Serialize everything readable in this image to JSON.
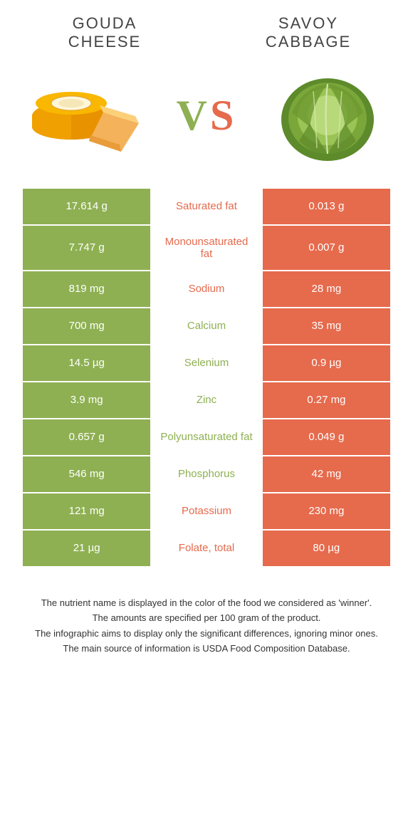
{
  "colors": {
    "green": "#8eb052",
    "orange": "#e66a4c",
    "white": "#ffffff"
  },
  "header": {
    "left_title_l1": "GOUDA",
    "left_title_l2": "CHEESE",
    "right_title_l1": "SAVOY",
    "right_title_l2": "CABBAGE"
  },
  "vs": {
    "text": "VS",
    "left_color": "#8eb052",
    "right_color": "#e66a4c"
  },
  "table": {
    "left_bg": "#8eb052",
    "right_bg": "#e66a4c",
    "center_bg": "#ffffff",
    "rows": [
      {
        "left": "17.614 g",
        "label": "Saturated fat",
        "winner": "orange",
        "right": "0.013 g"
      },
      {
        "left": "7.747 g",
        "label": "Monounsaturated fat",
        "winner": "orange",
        "right": "0.007 g"
      },
      {
        "left": "819 mg",
        "label": "Sodium",
        "winner": "orange",
        "right": "28 mg"
      },
      {
        "left": "700 mg",
        "label": "Calcium",
        "winner": "green",
        "right": "35 mg"
      },
      {
        "left": "14.5 µg",
        "label": "Selenium",
        "winner": "green",
        "right": "0.9 µg"
      },
      {
        "left": "3.9 mg",
        "label": "Zinc",
        "winner": "green",
        "right": "0.27 mg"
      },
      {
        "left": "0.657 g",
        "label": "Polyunsaturated fat",
        "winner": "green",
        "right": "0.049 g"
      },
      {
        "left": "546 mg",
        "label": "Phosphorus",
        "winner": "green",
        "right": "42 mg"
      },
      {
        "left": "121 mg",
        "label": "Potassium",
        "winner": "orange",
        "right": "230 mg"
      },
      {
        "left": "21 µg",
        "label": "Folate, total",
        "winner": "orange",
        "right": "80 µg"
      }
    ]
  },
  "footnotes": [
    "The nutrient name is displayed in the color of the food we considered as 'winner'.",
    "The amounts are specified per 100 gram of the product.",
    "The infographic aims to display only the significant differences, ignoring minor ones.",
    "The main source of information is USDA Food Composition Database."
  ]
}
